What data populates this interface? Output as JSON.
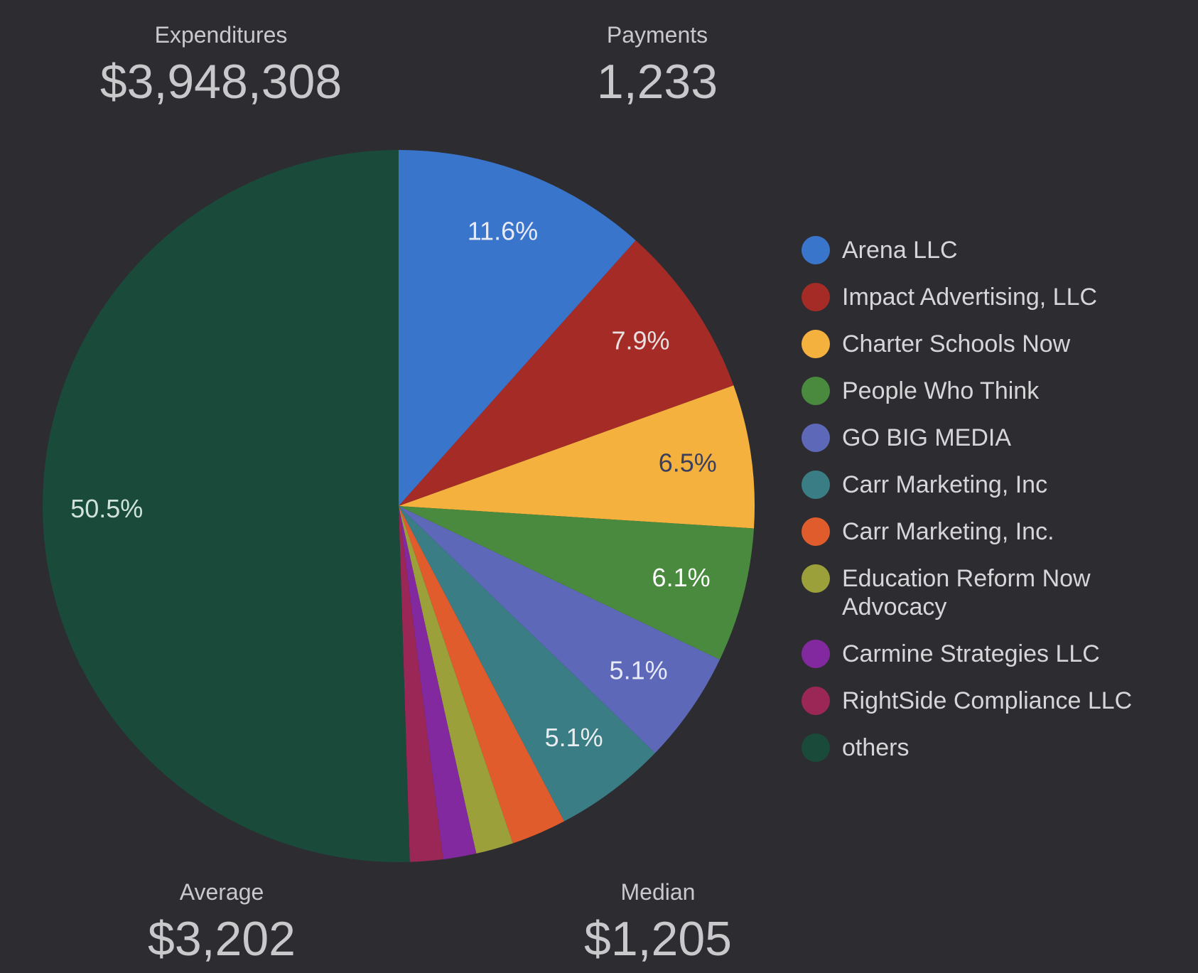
{
  "kpis": [
    {
      "label": "Expenditures",
      "value": "$3,948,308"
    },
    {
      "label": "Payments",
      "value": "1,233"
    },
    {
      "label": "Average",
      "value": "$3,202"
    },
    {
      "label": "Median",
      "value": "$1,205"
    }
  ],
  "chart_data": {
    "type": "pie",
    "categories": [
      "Arena LLC",
      "Impact Advertising, LLC",
      "Charter Schools Now",
      "People Who Think",
      "GO BIG MEDIA",
      "Carr Marketing, Inc",
      "Carr Marketing, Inc.",
      "Education Reform Now Advocacy",
      "Carmine Strategies LLC",
      "RightSide Compliance LLC",
      "others"
    ],
    "values": [
      11.6,
      7.9,
      6.5,
      6.1,
      5.1,
      5.1,
      2.5,
      1.7,
      1.5,
      1.5,
      50.5
    ],
    "value_labels": [
      "11.6%",
      "7.9%",
      "6.5%",
      "6.1%",
      "5.1%",
      "5.1%",
      null,
      null,
      null,
      null,
      "50.5%"
    ],
    "colors": [
      "#3a75cc",
      "#a52b27",
      "#f4b13e",
      "#4a8a3f",
      "#5d68b9",
      "#3a7d85",
      "#e05c2d",
      "#9ca03b",
      "#8229a0",
      "#9a2756",
      "#1a4a3a"
    ],
    "label_colors": [
      "#e8eaf6",
      "#e8e0e0",
      "#3b3f5c",
      "#ffffff",
      "#e8eaf6",
      "#e8eef0",
      null,
      null,
      null,
      null,
      "#cfe3dc"
    ]
  }
}
